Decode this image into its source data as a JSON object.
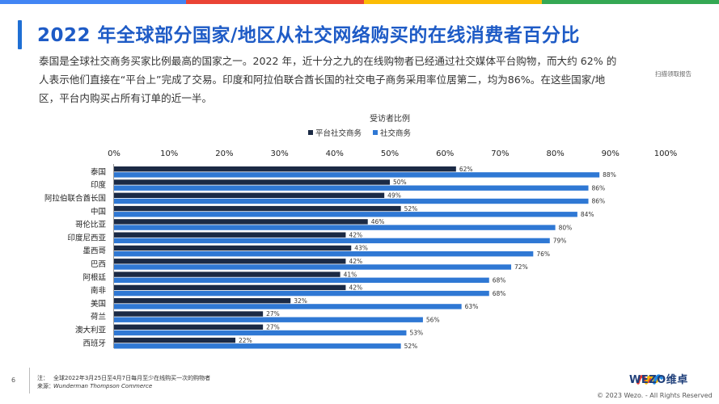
{
  "title": "2022 年全球部分国家/地区从社交网络购买的在线消费者百分比",
  "intro": "泰国是全球社交商务买家比例最高的国家之一。2022 年，近十分之九的在线购物者已经通过社交媒体平台购物，而大约 62% 的人表示他们直接在“平台上”完成了交易。印度和阿拉伯联合酋长国的社交电子商务采用率位居第二，均为86%。在这些国家/地区，平台内购买占所有订单的近一半。",
  "side_note": "扫描领取报告",
  "colors": {
    "dark": "#1b2a45",
    "blue": "#2f78d4",
    "title": "#1e5bc6"
  },
  "chart_data": {
    "type": "bar",
    "orientation": "horizontal",
    "title": "受访者比例",
    "categories": [
      "泰国",
      "印度",
      "阿拉伯联合酋长国",
      "中国",
      "哥伦比亚",
      "印度尼西亚",
      "墨西哥",
      "巴西",
      "阿根廷",
      "南非",
      "美国",
      "荷兰",
      "澳大利亚",
      "西班牙"
    ],
    "series": [
      {
        "name": "平台社交商务",
        "color": "#1b2a45",
        "values": [
          62,
          50,
          49,
          52,
          46,
          42,
          43,
          42,
          41,
          42,
          32,
          27,
          27,
          22
        ]
      },
      {
        "name": "社交商务",
        "color": "#2f78d4",
        "values": [
          88,
          86,
          86,
          84,
          80,
          79,
          76,
          72,
          68,
          68,
          63,
          56,
          53,
          52
        ]
      }
    ],
    "xlim": [
      0,
      100
    ],
    "ticks": [
      "0%",
      "10%",
      "20%",
      "30%",
      "40%",
      "50%",
      "60%",
      "70%",
      "80%",
      "90%",
      "100%"
    ],
    "value_suffix": "%",
    "legend_position": "top",
    "grid": false
  },
  "footer": {
    "page": "6",
    "note_key": "注：",
    "note_text": "全球2022年3月25日至4月7日每月至少在线购买一次的购物者",
    "source_key": "来源：",
    "source_text": "Wunderman Thompson Commerce",
    "brand": "WEZO维卓",
    "copyright": "© 2023 Wezo. - All Rights Reserved"
  }
}
